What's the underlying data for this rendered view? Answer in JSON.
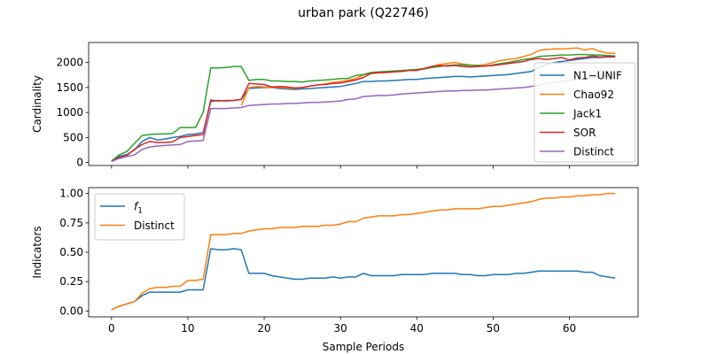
{
  "figure_title": "urban park (Q22746)",
  "chart_data": [
    {
      "type": "line",
      "ylabel": "Cardinality",
      "xlabel": "",
      "xlim": [
        -3,
        69
      ],
      "ylim": [
        -60,
        2400
      ],
      "xticks": [
        0,
        10,
        20,
        30,
        40,
        50,
        60
      ],
      "xtick_labels": [],
      "yticks": [
        0,
        500,
        1000,
        1500,
        2000
      ],
      "ytick_labels": [
        "0",
        "500",
        "1000",
        "1500",
        "2000"
      ],
      "grid": false,
      "legend_position": "lower-right",
      "series": [
        {
          "name": "N1−UNIF",
          "color": "#1f77b4",
          "x": [
            0,
            1,
            2,
            3,
            4,
            5,
            6,
            7,
            8,
            9,
            10,
            11,
            12,
            13,
            14,
            15,
            16,
            17,
            18,
            19,
            20,
            21,
            22,
            23,
            24,
            25,
            26,
            27,
            28,
            29,
            30,
            31,
            32,
            33,
            34,
            35,
            36,
            37,
            38,
            39,
            40,
            41,
            42,
            43,
            44,
            45,
            46,
            47,
            48,
            49,
            50,
            51,
            52,
            53,
            54,
            55,
            56,
            57,
            58,
            59,
            60,
            61,
            62,
            63,
            64,
            65,
            66
          ],
          "values": [
            20,
            120,
            160,
            250,
            420,
            500,
            450,
            470,
            500,
            520,
            560,
            570,
            600,
            1220,
            1240,
            1230,
            1240,
            1260,
            1480,
            1490,
            1500,
            1500,
            1480,
            1470,
            1460,
            1470,
            1480,
            1490,
            1500,
            1510,
            1520,
            1550,
            1580,
            1620,
            1620,
            1630,
            1630,
            1640,
            1650,
            1660,
            1660,
            1680,
            1690,
            1700,
            1710,
            1720,
            1720,
            1710,
            1720,
            1730,
            1740,
            1750,
            1760,
            1780,
            1800,
            1820,
            1900,
            1960,
            2000,
            2020,
            2040,
            2060,
            2080,
            2100,
            2100,
            2110,
            2110
          ]
        },
        {
          "name": "Chao92",
          "color": "#ff7f0e",
          "x": [
            17,
            18,
            19,
            20,
            21,
            22,
            23,
            24,
            25,
            26,
            27,
            28,
            29,
            30,
            31,
            32,
            33,
            34,
            35,
            36,
            37,
            38,
            39,
            40,
            41,
            42,
            43,
            44,
            45,
            46,
            47,
            48,
            49,
            50,
            51,
            52,
            53,
            54,
            55,
            56,
            57,
            58,
            59,
            60,
            61,
            62,
            63,
            64,
            65,
            66
          ],
          "values": [
            1140,
            1500,
            1520,
            1510,
            1500,
            1500,
            1490,
            1480,
            1500,
            1530,
            1550,
            1570,
            1600,
            1620,
            1640,
            1680,
            1750,
            1780,
            1790,
            1800,
            1810,
            1830,
            1850,
            1860,
            1880,
            1920,
            1960,
            1980,
            2000,
            1970,
            1950,
            1940,
            1960,
            2000,
            2040,
            2060,
            2080,
            2120,
            2160,
            2240,
            2260,
            2270,
            2270,
            2280,
            2290,
            2250,
            2280,
            2220,
            2190,
            2180
          ]
        },
        {
          "name": "Jack1",
          "color": "#2ca02c",
          "x": [
            0,
            1,
            2,
            3,
            4,
            5,
            6,
            7,
            8,
            9,
            10,
            11,
            12,
            13,
            14,
            15,
            16,
            17,
            18,
            19,
            20,
            21,
            22,
            23,
            24,
            25,
            26,
            27,
            28,
            29,
            30,
            31,
            32,
            33,
            34,
            35,
            36,
            37,
            38,
            39,
            40,
            41,
            42,
            43,
            44,
            45,
            46,
            47,
            48,
            49,
            50,
            51,
            52,
            53,
            54,
            55,
            56,
            57,
            58,
            59,
            60,
            61,
            62,
            63,
            64,
            65,
            66
          ],
          "values": [
            30,
            150,
            220,
            380,
            540,
            560,
            570,
            570,
            580,
            700,
            700,
            700,
            1000,
            1890,
            1890,
            1900,
            1920,
            1920,
            1640,
            1660,
            1660,
            1630,
            1630,
            1620,
            1620,
            1610,
            1630,
            1640,
            1650,
            1660,
            1680,
            1680,
            1740,
            1760,
            1800,
            1810,
            1820,
            1830,
            1840,
            1850,
            1860,
            1870,
            1900,
            1920,
            1940,
            1950,
            1950,
            1940,
            1940,
            1930,
            1950,
            1980,
            2000,
            2030,
            2060,
            2080,
            2120,
            2130,
            2140,
            2150,
            2150,
            2160,
            2160,
            2150,
            2150,
            2140,
            2130
          ]
        },
        {
          "name": "SOR",
          "color": "#d62728",
          "x": [
            0,
            1,
            2,
            3,
            4,
            5,
            6,
            7,
            8,
            9,
            10,
            11,
            12,
            13,
            14,
            15,
            16,
            17,
            18,
            19,
            20,
            21,
            22,
            23,
            24,
            25,
            26,
            27,
            28,
            29,
            30,
            31,
            32,
            33,
            34,
            35,
            36,
            37,
            38,
            39,
            40,
            41,
            42,
            43,
            44,
            45,
            46,
            47,
            48,
            49,
            50,
            51,
            52,
            53,
            54,
            55,
            56,
            57,
            58,
            59,
            60,
            61,
            62,
            63,
            64,
            65,
            66
          ],
          "values": [
            20,
            100,
            140,
            260,
            360,
            420,
            400,
            400,
            410,
            500,
            520,
            540,
            560,
            1250,
            1230,
            1240,
            1240,
            1260,
            1580,
            1570,
            1560,
            1510,
            1520,
            1510,
            1490,
            1500,
            1530,
            1550,
            1560,
            1580,
            1590,
            1620,
            1650,
            1700,
            1780,
            1800,
            1800,
            1810,
            1820,
            1840,
            1840,
            1880,
            1920,
            1940,
            1930,
            1940,
            1920,
            1910,
            1920,
            1930,
            1940,
            1960,
            1980,
            2000,
            2020,
            2060,
            2080,
            2060,
            2080,
            2100,
            2050,
            2090,
            2100,
            2130,
            2110,
            2120,
            2120
          ]
        },
        {
          "name": "Distinct",
          "color": "#9467bd",
          "x": [
            0,
            1,
            2,
            3,
            4,
            5,
            6,
            7,
            8,
            9,
            10,
            11,
            12,
            13,
            14,
            15,
            16,
            17,
            18,
            19,
            20,
            21,
            22,
            23,
            24,
            25,
            26,
            27,
            28,
            29,
            30,
            31,
            32,
            33,
            34,
            35,
            36,
            37,
            38,
            39,
            40,
            41,
            42,
            43,
            44,
            45,
            46,
            47,
            48,
            49,
            50,
            51,
            52,
            53,
            54,
            55,
            56,
            57,
            58,
            59,
            60,
            61,
            62,
            63,
            64,
            65,
            66
          ],
          "values": [
            20,
            80,
            120,
            150,
            260,
            310,
            330,
            340,
            350,
            360,
            420,
            430,
            440,
            1080,
            1080,
            1080,
            1090,
            1100,
            1140,
            1150,
            1160,
            1170,
            1170,
            1180,
            1180,
            1190,
            1200,
            1200,
            1210,
            1220,
            1230,
            1260,
            1270,
            1320,
            1330,
            1340,
            1340,
            1350,
            1370,
            1380,
            1390,
            1400,
            1410,
            1420,
            1430,
            1430,
            1440,
            1440,
            1450,
            1450,
            1460,
            1470,
            1480,
            1490,
            1500,
            1520,
            1550,
            1580,
            1600,
            1620,
            1640,
            1660,
            1680,
            1700,
            1720,
            1740,
            1760
          ]
        }
      ]
    },
    {
      "type": "line",
      "ylabel": "Indicators",
      "xlabel": "Sample Periods",
      "xlim": [
        -3,
        69
      ],
      "ylim": [
        -0.05,
        1.05
      ],
      "xticks": [
        0,
        10,
        20,
        30,
        40,
        50,
        60
      ],
      "xtick_labels": [
        "0",
        "10",
        "20",
        "30",
        "40",
        "50",
        "60"
      ],
      "yticks": [
        0.0,
        0.25,
        0.5,
        0.75,
        1.0
      ],
      "ytick_labels": [
        "0.00",
        "0.25",
        "0.50",
        "0.75",
        "1.00"
      ],
      "grid": false,
      "legend_position": "upper-left",
      "series": [
        {
          "name": "f",
          "name_subscript": "1",
          "color": "#1f77b4",
          "x": [
            0,
            1,
            2,
            3,
            4,
            5,
            6,
            7,
            8,
            9,
            10,
            11,
            12,
            13,
            14,
            15,
            16,
            17,
            18,
            19,
            20,
            21,
            22,
            23,
            24,
            25,
            26,
            27,
            28,
            29,
            30,
            31,
            32,
            33,
            34,
            35,
            36,
            37,
            38,
            39,
            40,
            41,
            42,
            43,
            44,
            45,
            46,
            47,
            48,
            49,
            50,
            51,
            52,
            53,
            54,
            55,
            56,
            57,
            58,
            59,
            60,
            61,
            62,
            63,
            64,
            65,
            66
          ],
          "values": [
            0.01,
            0.04,
            0.06,
            0.08,
            0.13,
            0.16,
            0.16,
            0.16,
            0.16,
            0.16,
            0.18,
            0.18,
            0.18,
            0.53,
            0.52,
            0.52,
            0.53,
            0.52,
            0.32,
            0.32,
            0.32,
            0.3,
            0.29,
            0.28,
            0.27,
            0.27,
            0.28,
            0.28,
            0.28,
            0.29,
            0.28,
            0.29,
            0.29,
            0.32,
            0.3,
            0.3,
            0.3,
            0.3,
            0.31,
            0.31,
            0.31,
            0.31,
            0.32,
            0.32,
            0.32,
            0.32,
            0.31,
            0.31,
            0.3,
            0.3,
            0.31,
            0.31,
            0.31,
            0.32,
            0.32,
            0.33,
            0.34,
            0.34,
            0.34,
            0.34,
            0.34,
            0.34,
            0.33,
            0.33,
            0.3,
            0.29,
            0.28
          ]
        },
        {
          "name": "Distinct",
          "color": "#ff7f0e",
          "x": [
            0,
            1,
            2,
            3,
            4,
            5,
            6,
            7,
            8,
            9,
            10,
            11,
            12,
            13,
            14,
            15,
            16,
            17,
            18,
            19,
            20,
            21,
            22,
            23,
            24,
            25,
            26,
            27,
            28,
            29,
            30,
            31,
            32,
            33,
            34,
            35,
            36,
            37,
            38,
            39,
            40,
            41,
            42,
            43,
            44,
            45,
            46,
            47,
            48,
            49,
            50,
            51,
            52,
            53,
            54,
            55,
            56,
            57,
            58,
            59,
            60,
            61,
            62,
            63,
            64,
            65,
            66
          ],
          "values": [
            0.01,
            0.04,
            0.06,
            0.08,
            0.15,
            0.19,
            0.2,
            0.2,
            0.21,
            0.21,
            0.26,
            0.26,
            0.27,
            0.65,
            0.65,
            0.65,
            0.66,
            0.66,
            0.68,
            0.69,
            0.7,
            0.7,
            0.71,
            0.71,
            0.71,
            0.72,
            0.72,
            0.72,
            0.73,
            0.73,
            0.74,
            0.76,
            0.76,
            0.79,
            0.8,
            0.81,
            0.81,
            0.81,
            0.82,
            0.82,
            0.83,
            0.84,
            0.85,
            0.86,
            0.86,
            0.87,
            0.87,
            0.87,
            0.87,
            0.88,
            0.89,
            0.89,
            0.9,
            0.91,
            0.92,
            0.93,
            0.95,
            0.96,
            0.96,
            0.97,
            0.97,
            0.98,
            0.98,
            0.99,
            0.99,
            1.0,
            1.0
          ]
        }
      ]
    }
  ]
}
